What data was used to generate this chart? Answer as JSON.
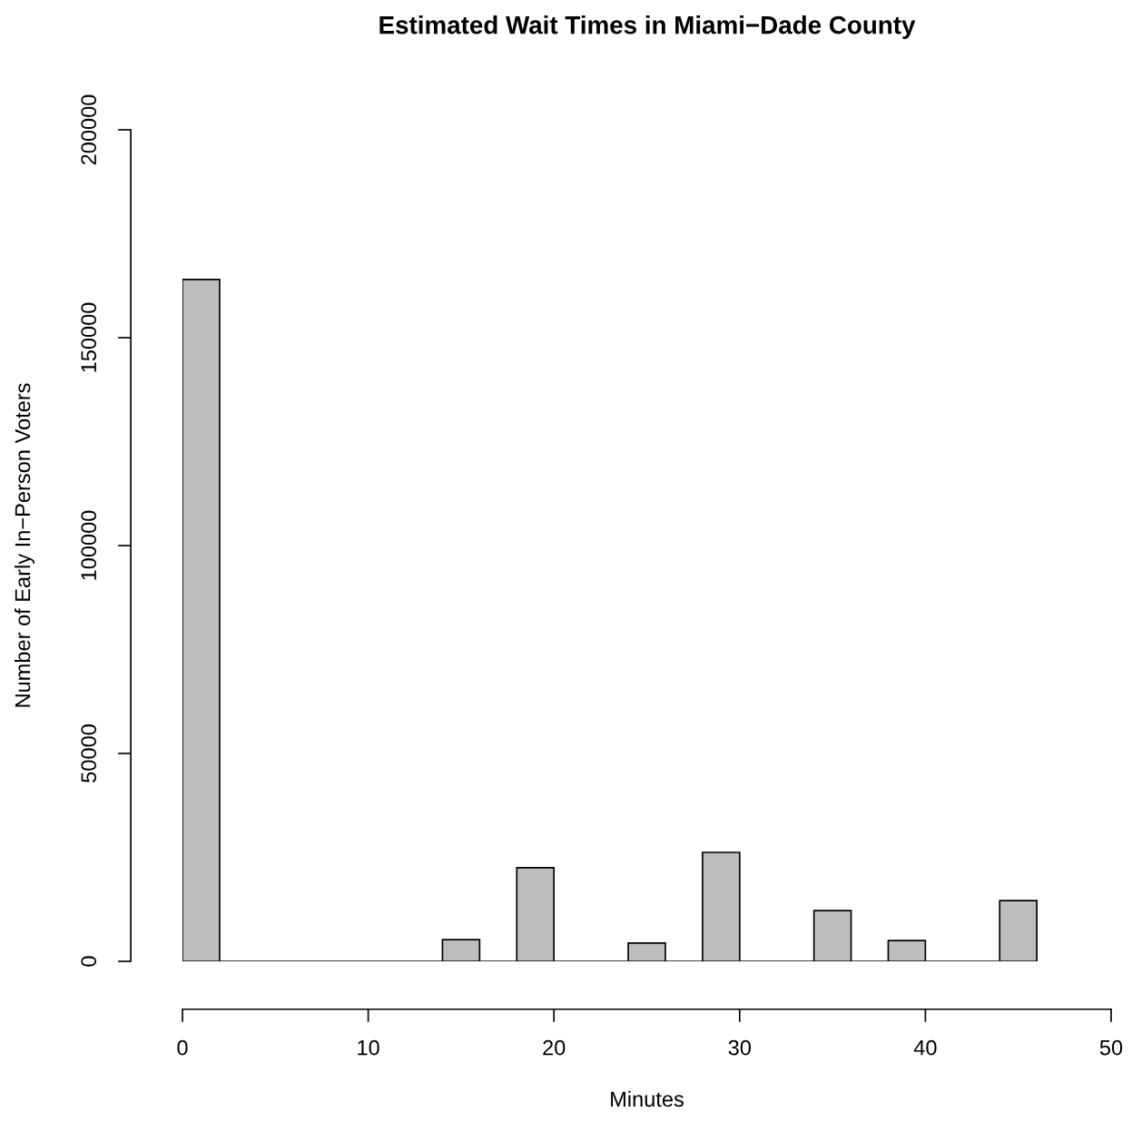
{
  "chart_data": {
    "type": "histogram",
    "title": "Estimated Wait Times in Miami−Dade County",
    "xlabel": "Minutes",
    "ylabel": "Number of Early In−Person Voters",
    "bins": [
      0,
      2,
      4,
      6,
      8,
      10,
      12,
      14,
      16,
      18,
      20,
      22,
      24,
      26,
      28,
      30,
      32,
      34,
      36,
      38,
      40,
      42,
      44,
      46
    ],
    "values": [
      164000,
      0,
      0,
      0,
      0,
      0,
      0,
      5200,
      0,
      22500,
      0,
      0,
      4400,
      0,
      26200,
      0,
      0,
      12200,
      0,
      5000,
      0,
      0,
      14600
    ],
    "color": "#bebebe",
    "xlim": [
      0,
      50
    ],
    "xticks": [
      0,
      10,
      20,
      30,
      40,
      50
    ],
    "ylim": [
      0,
      200000
    ],
    "yticks": [
      0,
      50000,
      100000,
      150000,
      200000
    ],
    "grid": false
  }
}
